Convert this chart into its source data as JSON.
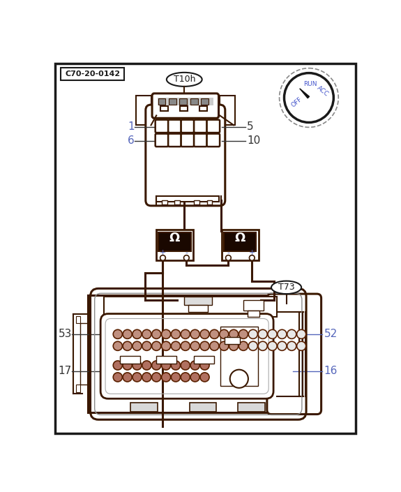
{
  "bg_color": "#ffffff",
  "border_color": "#1a1a1a",
  "label_c70": "C70-20-0142",
  "label_t10h": "T10h",
  "label_t73": "T73",
  "lc": "#3a1800",
  "lc_thin": "#555555",
  "blue_label": "#5566bb",
  "dark_label": "#333333",
  "circle_fill_brown": "#c09080",
  "circle_fill_light": "#e8e8e8",
  "omega_dark": "#1a0800",
  "dial_text_color": "#4455cc"
}
